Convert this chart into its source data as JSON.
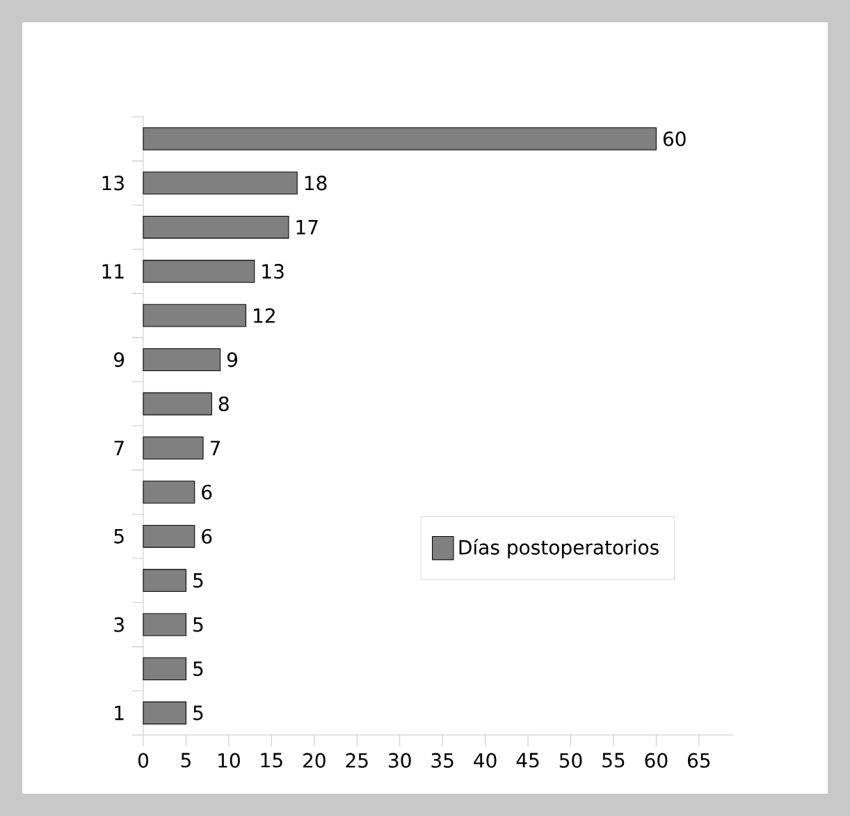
{
  "chart_data": {
    "type": "bar",
    "orientation": "horizontal",
    "categories": [
      null,
      "13",
      null,
      "11",
      null,
      "9",
      null,
      "7",
      null,
      "5",
      null,
      "3",
      null,
      "1"
    ],
    "series": [
      {
        "name": "Días postoperatorios",
        "color": "#808080",
        "values": [
          60,
          18,
          17,
          13,
          12,
          9,
          8,
          7,
          6,
          6,
          5,
          5,
          5,
          5
        ]
      }
    ],
    "xlim": [
      0,
      69
    ],
    "xticks": [
      0,
      5,
      10,
      15,
      20,
      25,
      30,
      35,
      40,
      45,
      50,
      55,
      60,
      65
    ],
    "data_labels": true,
    "legend": "bottom right",
    "grid": false
  }
}
